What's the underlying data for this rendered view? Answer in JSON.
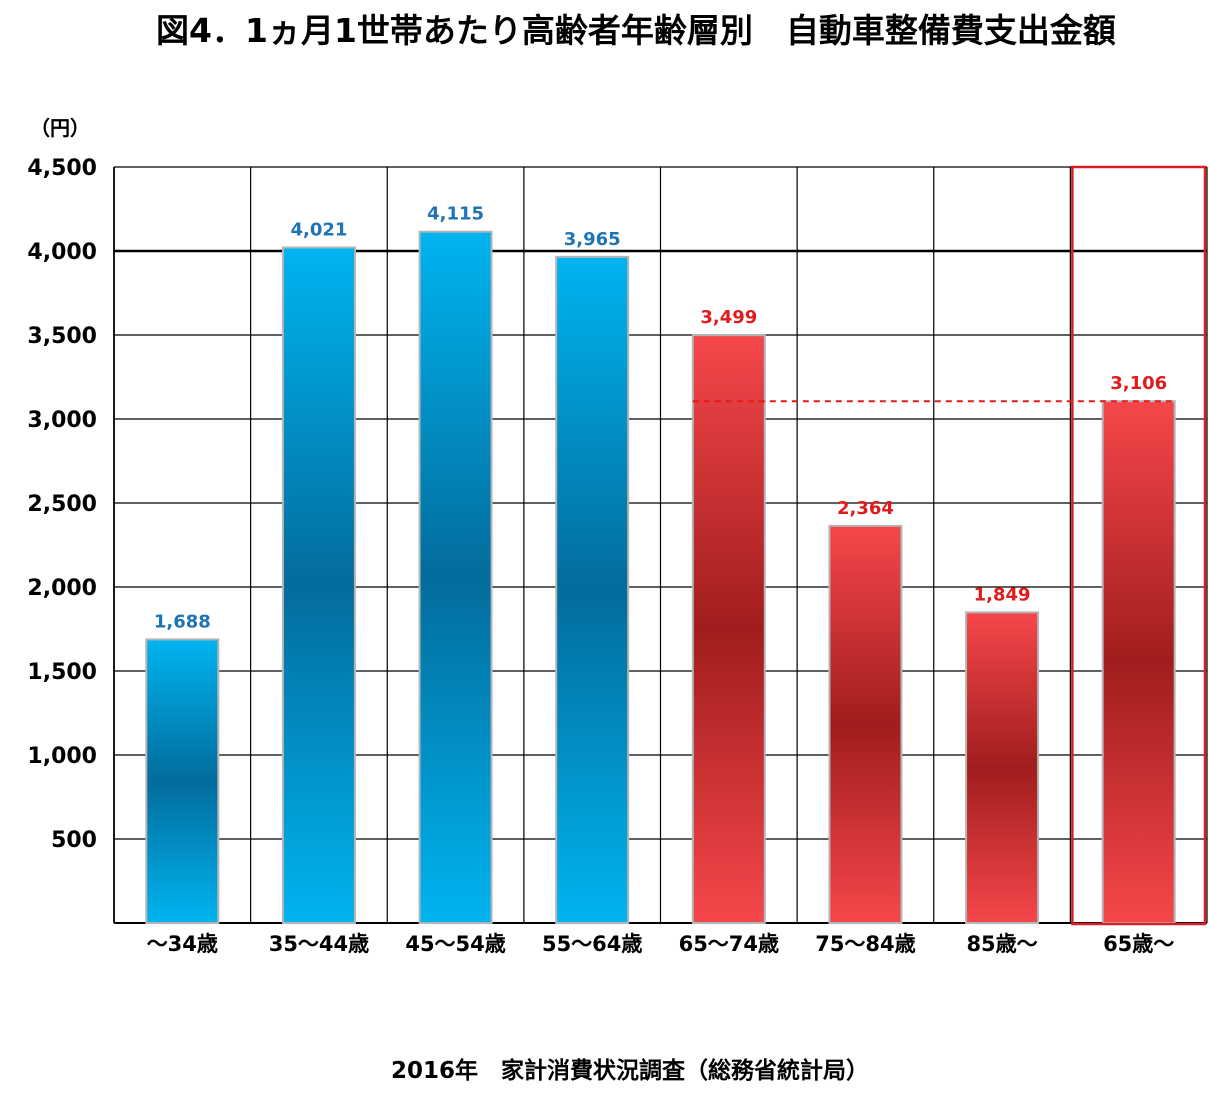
{
  "chart_data": {
    "type": "bar",
    "title": "図4．1ヵ月1世帯あたり高齢者年齢層別　自動車整備費支出金額",
    "unit_label": "（円）",
    "source": "2016年　家計消費状況調査（総務省統計局）",
    "categories": [
      "～34歳",
      "35～44歳",
      "45～54歳",
      "55～64歳",
      "65～74歳",
      "75～84歳",
      "85歳～",
      "65歳～"
    ],
    "values": [
      1688,
      4021,
      4115,
      3965,
      3499,
      2364,
      1849,
      3106
    ],
    "data_labels": [
      "1,688",
      "4,021",
      "4,115",
      "3,965",
      "3,499",
      "2,364",
      "1,849",
      "3,106"
    ],
    "bar_groups": [
      "blue",
      "blue",
      "blue",
      "blue",
      "red",
      "red",
      "red",
      "red"
    ],
    "ylim": [
      0,
      4500
    ],
    "yticks": [
      500,
      1000,
      1500,
      2000,
      2500,
      3000,
      3500,
      4000,
      4500
    ],
    "ytick_labels": [
      "500",
      "1,000",
      "1,500",
      "2,000",
      "2,500",
      "3,000",
      "3,500",
      "4,000",
      "4,500"
    ],
    "grid": true,
    "reference_line": {
      "value": 3106,
      "style": "dashed",
      "color": "#e11b1b"
    },
    "highlight_box_category": "65歳～",
    "colors": {
      "blue_light": "#00b4f0",
      "blue_dark": "#036c9c",
      "red_light": "#f5474b",
      "red_dark": "#a11d1d",
      "blue_label": "#1f74b4",
      "red_label": "#e11b1b",
      "highlight": "#d91f26"
    }
  }
}
